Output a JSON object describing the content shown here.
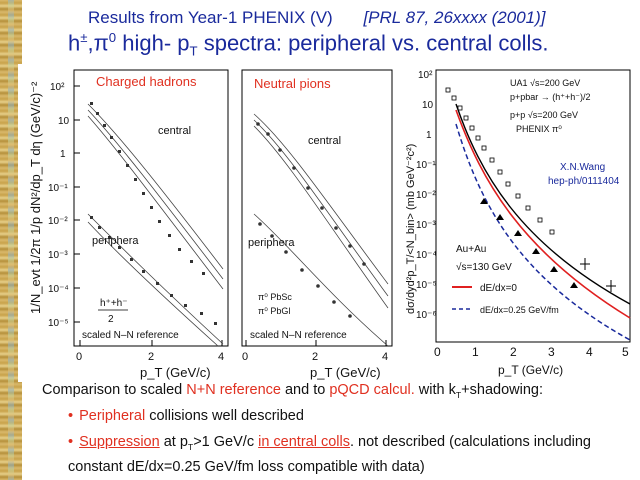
{
  "header": {
    "line1": "Results from Year-1 PHENIX (V)",
    "line1_ref": "[PRL 87, 26xxxx (2001)]",
    "line2_prefix": "h",
    "line2_sup1": "±",
    "line2_mid": ",π",
    "line2_sup2": "0",
    "line2_text": " high- p",
    "line2_sub": "T",
    "line2_suffix": " spectra: peripheral vs. central colls."
  },
  "left_panel": {
    "ylabel": "1/N_evt 1/2π 1/p dN²/dp_T dη (GeV/c)⁻²",
    "ytick_labels": [
      "10²",
      "10",
      "1",
      "10⁻¹",
      "10⁻²",
      "10⁻³",
      "10⁻⁴",
      "10⁻⁵"
    ],
    "sub1": {
      "title": "Charged hadrons",
      "central": "central",
      "peripheral": "periphera",
      "legend_top": "h⁺+h⁻",
      "legend_bot": "2",
      "scaled": "scaled N–N reference",
      "xticks": [
        "0",
        "2",
        "4"
      ]
    },
    "sub2": {
      "title": "Neutral pions",
      "central": "central",
      "peripheral": "periphera",
      "legend1": "π⁰ PbSc",
      "legend2": "π⁰ PbGl",
      "scaled": "scaled N–N reference",
      "xticks": [
        "0",
        "2",
        "4"
      ]
    },
    "xlabel1": "p_T (GeV/c)",
    "xlabel2": "p_T (GeV/c)"
  },
  "right_panel": {
    "ylabel": "dσ/dyd²p_T/<N_bin> (mb GeV⁻²c²)",
    "xlabel": "p_T (GeV/c)",
    "yticks": [
      "10²",
      "10",
      "1",
      "10⁻¹",
      "10⁻²",
      "10⁻³",
      "10⁻⁴",
      "10⁻⁵",
      "10⁻⁶"
    ],
    "xticks": [
      "0",
      "1",
      "2",
      "3",
      "4",
      "5"
    ],
    "legend1": "UA1 √s=200 GeV",
    "legend2": "p+pbar → (h⁺+h⁻)/2",
    "legend3": "p+p √s=200 GeV",
    "legend4": "PHENIX π⁰",
    "author": "X.N.Wang",
    "ref": "hep-ph/0111404",
    "system": "Au+Au",
    "energy": "√s=130 GeV",
    "line1_label": "dE/dx=0",
    "line2_label": "dE/dx=0.25 GeV/fm",
    "colors": {
      "red_curve": "#e02020",
      "black_curve": "#000000",
      "blue_dashed": "#1a2a9c",
      "blue_text": "#1a2a9c"
    }
  },
  "caption": {
    "part1": "Comparison to scaled ",
    "red1": "N+N reference",
    "part2": " and to ",
    "red2": "pQCD calcul.",
    "part3": " with k",
    "sub": "T",
    "part4": "+shadowing:"
  },
  "bullets": [
    {
      "pre": "",
      "red": "Peripheral",
      "post": " collisions well described"
    },
    {
      "red_ul": "Suppression",
      "mid": " at p",
      "sub": "T",
      "mid2": ">1 GeV/c ",
      "red_ul2": "in central colls",
      "post": ". not described (calculations including constant dE/dx=0.25 GeV/fm loss compatible with data)"
    }
  ]
}
